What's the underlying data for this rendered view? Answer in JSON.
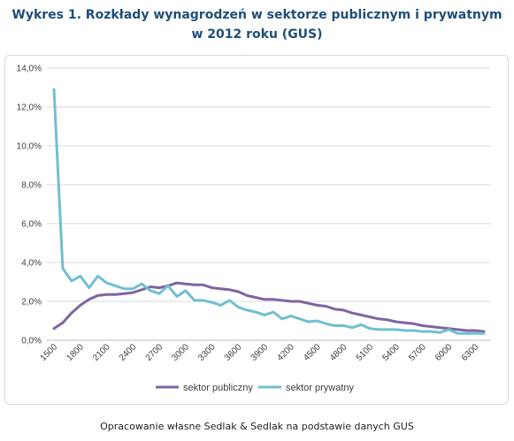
{
  "title_line1": "Wykres 1. Rozkłady wynagrodzeń w sektorze publicznym i prywatnym",
  "title_line2": "w 2012 roku (GUS)",
  "source": "Opracowanie własne Sedlak & Sedlak na podstawie danych GUS",
  "chart_data": {
    "type": "line",
    "title": "",
    "xlabel": "",
    "ylabel": "",
    "ylim": [
      0,
      14
    ],
    "ytick_labels": [
      "0,0%",
      "2,0%",
      "4,0%",
      "6,0%",
      "8,0%",
      "10,0%",
      "12,0%",
      "14,0%"
    ],
    "xtick_labels": [
      "1500",
      "1800",
      "2100",
      "2400",
      "2700",
      "3000",
      "3300",
      "3600",
      "3900",
      "4200",
      "4500",
      "4800",
      "5100",
      "5400",
      "5700",
      "6000",
      "6300"
    ],
    "x": [
      1500,
      1600,
      1700,
      1800,
      1900,
      2000,
      2100,
      2200,
      2300,
      2400,
      2500,
      2600,
      2700,
      2800,
      2900,
      3000,
      3100,
      3200,
      3300,
      3400,
      3500,
      3600,
      3700,
      3800,
      3900,
      4000,
      4100,
      4200,
      4300,
      4400,
      4500,
      4600,
      4700,
      4800,
      4900,
      5000,
      5100,
      5200,
      5300,
      5400,
      5500,
      5600,
      5700,
      5800,
      5900,
      6000,
      6100,
      6200,
      6300,
      6400
    ],
    "series": [
      {
        "name": "sektor publiczny",
        "color": "#8064a2",
        "values": [
          0.6,
          0.9,
          1.4,
          1.8,
          2.1,
          2.3,
          2.35,
          2.35,
          2.4,
          2.45,
          2.6,
          2.75,
          2.7,
          2.8,
          2.95,
          2.9,
          2.85,
          2.85,
          2.7,
          2.65,
          2.6,
          2.5,
          2.3,
          2.2,
          2.1,
          2.1,
          2.05,
          2.0,
          2.0,
          1.9,
          1.8,
          1.75,
          1.6,
          1.55,
          1.4,
          1.3,
          1.2,
          1.1,
          1.05,
          0.95,
          0.9,
          0.85,
          0.75,
          0.7,
          0.65,
          0.6,
          0.55,
          0.5,
          0.5,
          0.45
        ]
      },
      {
        "name": "sektor prywatny",
        "color": "#71bfd1",
        "values": [
          12.9,
          3.7,
          3.05,
          3.3,
          2.7,
          3.3,
          2.95,
          2.8,
          2.65,
          2.65,
          2.9,
          2.55,
          2.4,
          2.8,
          2.25,
          2.55,
          2.05,
          2.05,
          1.95,
          1.8,
          2.05,
          1.7,
          1.55,
          1.45,
          1.3,
          1.45,
          1.1,
          1.25,
          1.1,
          0.95,
          1.0,
          0.85,
          0.75,
          0.75,
          0.65,
          0.8,
          0.6,
          0.55,
          0.55,
          0.55,
          0.5,
          0.5,
          0.45,
          0.45,
          0.4,
          0.55,
          0.35,
          0.35,
          0.35,
          0.35
        ]
      }
    ],
    "grid": true,
    "legend": "bottom"
  }
}
